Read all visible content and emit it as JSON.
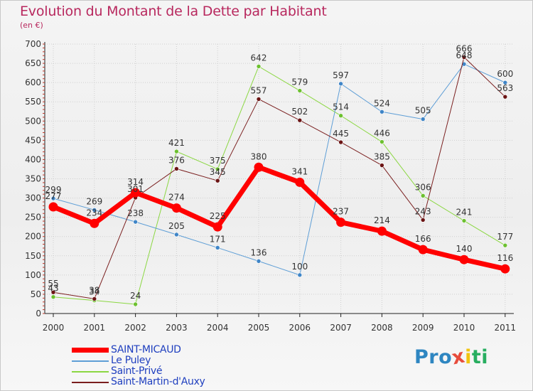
{
  "title": "Evolution du Montant de la Dette par Habitant",
  "subtitle": "(en €)",
  "brand": {
    "text": "Proxiti",
    "letters": [
      {
        "ch": "P",
        "color": "#2e86c1"
      },
      {
        "ch": "r",
        "color": "#2e86c1"
      },
      {
        "ch": "o",
        "color": "#2e86c1"
      },
      {
        "ch": "x",
        "color": "#e74c3c"
      },
      {
        "ch": "i",
        "color": "#f1c40f"
      },
      {
        "ch": "t",
        "color": "#27ae60"
      },
      {
        "ch": "i",
        "color": "#27ae60"
      }
    ]
  },
  "chart_data": {
    "type": "line",
    "x": [
      "2000",
      "2001",
      "2002",
      "2003",
      "2004",
      "2005",
      "2006",
      "2007",
      "2008",
      "2009",
      "2010",
      "2011"
    ],
    "ylim": [
      0,
      700
    ],
    "yticks": [
      0,
      50,
      100,
      150,
      200,
      250,
      300,
      350,
      400,
      450,
      500,
      550,
      600,
      650,
      700
    ],
    "grid": true,
    "legend_position": "bottom-left",
    "series": [
      {
        "name": "Saint-Privé",
        "color": "#8bd742",
        "marker": "#6cc02f",
        "width": 1,
        "labels": [
          "43",
          "34",
          "24",
          "421",
          "375",
          "642",
          "579",
          "514",
          "446",
          "306",
          "241",
          "177"
        ],
        "values": [
          43,
          34,
          24,
          421,
          375,
          642,
          579,
          514,
          446,
          306,
          241,
          177
        ]
      },
      {
        "name": "Le Puley",
        "color": "#5e9ed6",
        "marker": "#3f85c7",
        "width": 1,
        "labels": [
          "299",
          "269",
          "238",
          "205",
          "171",
          "136",
          "100",
          "597",
          "524",
          "505",
          "648",
          "600"
        ],
        "values": [
          299,
          269,
          238,
          205,
          171,
          136,
          100,
          597,
          524,
          505,
          648,
          600
        ]
      },
      {
        "name": "Saint-Martin-d'Auxy",
        "color": "#7a1f1f",
        "marker": "#6b1414",
        "width": 1,
        "labels": [
          "55",
          "38",
          "301",
          "376",
          "345",
          "557",
          "502",
          "445",
          "385",
          "243",
          "666",
          "563"
        ],
        "values": [
          55,
          38,
          301,
          376,
          345,
          557,
          502,
          445,
          385,
          243,
          666,
          563
        ]
      },
      {
        "name": "SAINT-MICAUD",
        "color": "#ff0000",
        "marker": "#ff0000",
        "width": 7,
        "labels": [
          "277",
          "234",
          "314",
          "274",
          "225",
          "380",
          "341",
          "237",
          "214",
          "166",
          "140",
          "116"
        ],
        "values": [
          277,
          234,
          314,
          274,
          225,
          380,
          341,
          237,
          214,
          166,
          140,
          116
        ]
      }
    ]
  },
  "legend": [
    {
      "label": "SAINT-MICAUD",
      "color": "#ff0000",
      "thick": true
    },
    {
      "label": "Le Puley",
      "color": "#5e9ed6",
      "thick": false
    },
    {
      "label": "Saint-Privé",
      "color": "#8bd742",
      "thick": false
    },
    {
      "label": "Saint-Martin-d'Auxy",
      "color": "#7a1f1f",
      "thick": false
    }
  ]
}
